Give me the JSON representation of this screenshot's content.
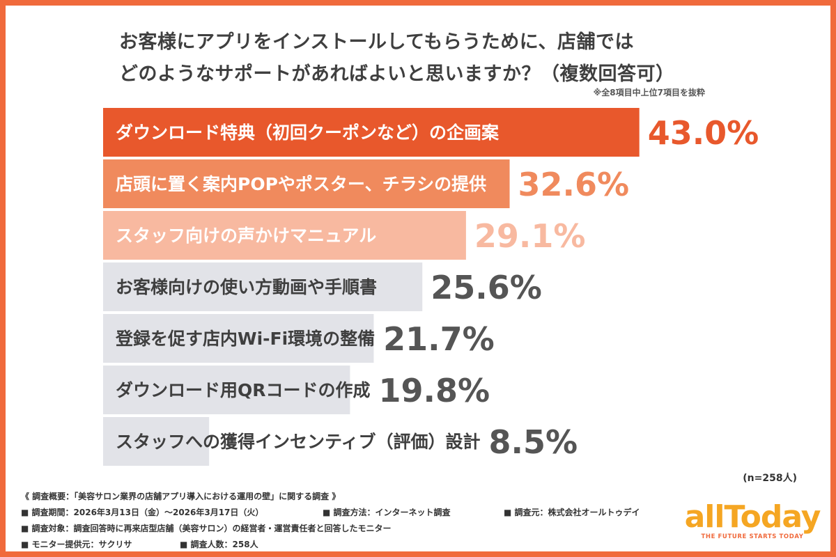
{
  "title_lines": [
    "お客様にアプリをインストールしてもらうために、店舗では",
    "どのようなサポートがあればよいと思いますか？（複数回答可）"
  ],
  "note": "※全8項目中上位7項目を抜粋",
  "sample_size": "(n=258人)",
  "chart_data": {
    "type": "bar",
    "orientation": "horizontal",
    "title": "お客様にアプリをインストールしてもらうために、店舗ではどのようなサポートがあればよいと思いますか？（複数回答可）",
    "categories": [
      "ダウンロード特典（初回クーポンなど）の企画案",
      "店頭に置く案内POPやポスター、チラシの提供",
      "スタッフ向けの声かけマニュアル",
      "お客様向けの使い方動画や手順書",
      "登録を促す店内Wi-Fi環境の整備",
      "ダウンロード用QRコードの作成",
      "スタッフへの獲得インセンティブ（評価）設計"
    ],
    "values": [
      43.0,
      32.6,
      29.1,
      25.6,
      21.7,
      19.8,
      8.5
    ],
    "value_labels": [
      "43.0%",
      "32.6%",
      "29.1%",
      "25.6%",
      "21.7%",
      "19.8%",
      "8.5%"
    ],
    "unit": "%",
    "xlim": [
      0,
      50
    ],
    "grid": false,
    "legend": "none",
    "bar_colors": [
      "#e8582c",
      "#f08a5d",
      "#f8b9a0",
      "#e2e3e8",
      "#e2e3e8",
      "#e2e3e8",
      "#e2e3e8"
    ],
    "label_colors": [
      "#ffffff",
      "#ffffff",
      "#ffffff",
      "#3f3f3f",
      "#3f3f3f",
      "#3f3f3f",
      "#3f3f3f"
    ],
    "value_colors": [
      "#e8582c",
      "#f08a5d",
      "#f8b9a0",
      "#555555",
      "#555555",
      "#555555",
      "#555555"
    ]
  },
  "footer": {
    "overview": "《 調査概要：「美容サロン業界の店舗アプリ導入における運用の壁」に関する調査 》",
    "period": "■ 調査期間：2026年3月13日（金）〜2026年3月17日（火）",
    "method": "■ 調査方法：インターネット調査",
    "source": "■ 調査元：株式会社オールトゥデイ",
    "target": "■ 調査対象：調査回答時に再来店型店舗（美容サロン）の経営者・運営責任者と回答したモニター",
    "provider": "■ モニター提供元：サクリサ",
    "count": "■ 調査人数：258人"
  },
  "logo": {
    "name": "allToday",
    "tagline": "THE FUTURE STARTS TODAY"
  }
}
